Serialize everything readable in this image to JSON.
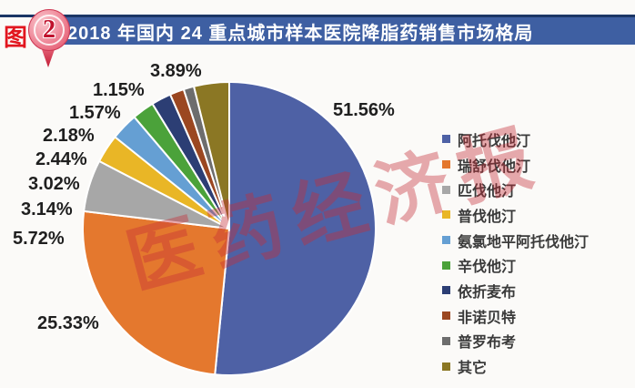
{
  "header": {
    "figure_tag": "图",
    "figure_number": "2",
    "title": "2018 年国内 24 重点城市样本医院降脂药销售市场格局"
  },
  "watermark": "医药经济报",
  "colors": {
    "header_bar": "#3e5fa2",
    "header_border": "#1b3666",
    "figure_tag_red": "#e2161f",
    "balloon_pink": "#ec7487",
    "balloon_crimson": "#c21a34",
    "label_text": "#1f1f1f",
    "watermark_red": "#c52c38"
  },
  "chart_data": {
    "type": "pie",
    "title": "2018 年国内 24 重点城市样本医院降脂药销售市场格局",
    "legend_position": "right",
    "start_angle_deg": 0,
    "direction": "clockwise",
    "items": [
      {
        "label": "阿托伐他汀",
        "value": 51.56,
        "percent_label": "51.56%",
        "color": "#4e61a5"
      },
      {
        "label": "瑞舒伐他汀",
        "value": 25.33,
        "percent_label": "25.33%",
        "color": "#e4782e"
      },
      {
        "label": "匹伐他汀",
        "value": 5.72,
        "percent_label": "5.72%",
        "color": "#a7a7a7"
      },
      {
        "label": "普伐他汀",
        "value": 3.14,
        "percent_label": "3.14%",
        "color": "#e9b626"
      },
      {
        "label": "氨氯地平阿托伐他汀",
        "value": 3.02,
        "percent_label": "3.02%",
        "color": "#659fd3"
      },
      {
        "label": "辛伐他汀",
        "value": 2.44,
        "percent_label": "2.44%",
        "color": "#4ba23a"
      },
      {
        "label": "依折麦布",
        "value": 2.18,
        "percent_label": "2.18%",
        "color": "#2c3e74"
      },
      {
        "label": "非诺贝特",
        "value": 1.57,
        "percent_label": "1.57%",
        "color": "#9b4721"
      },
      {
        "label": "普罗布考",
        "value": 1.15,
        "percent_label": "1.15%",
        "color": "#6d6d6d"
      },
      {
        "label": "其它",
        "value": 3.89,
        "percent_label": "3.89%",
        "color": "#8b7724"
      }
    ]
  }
}
